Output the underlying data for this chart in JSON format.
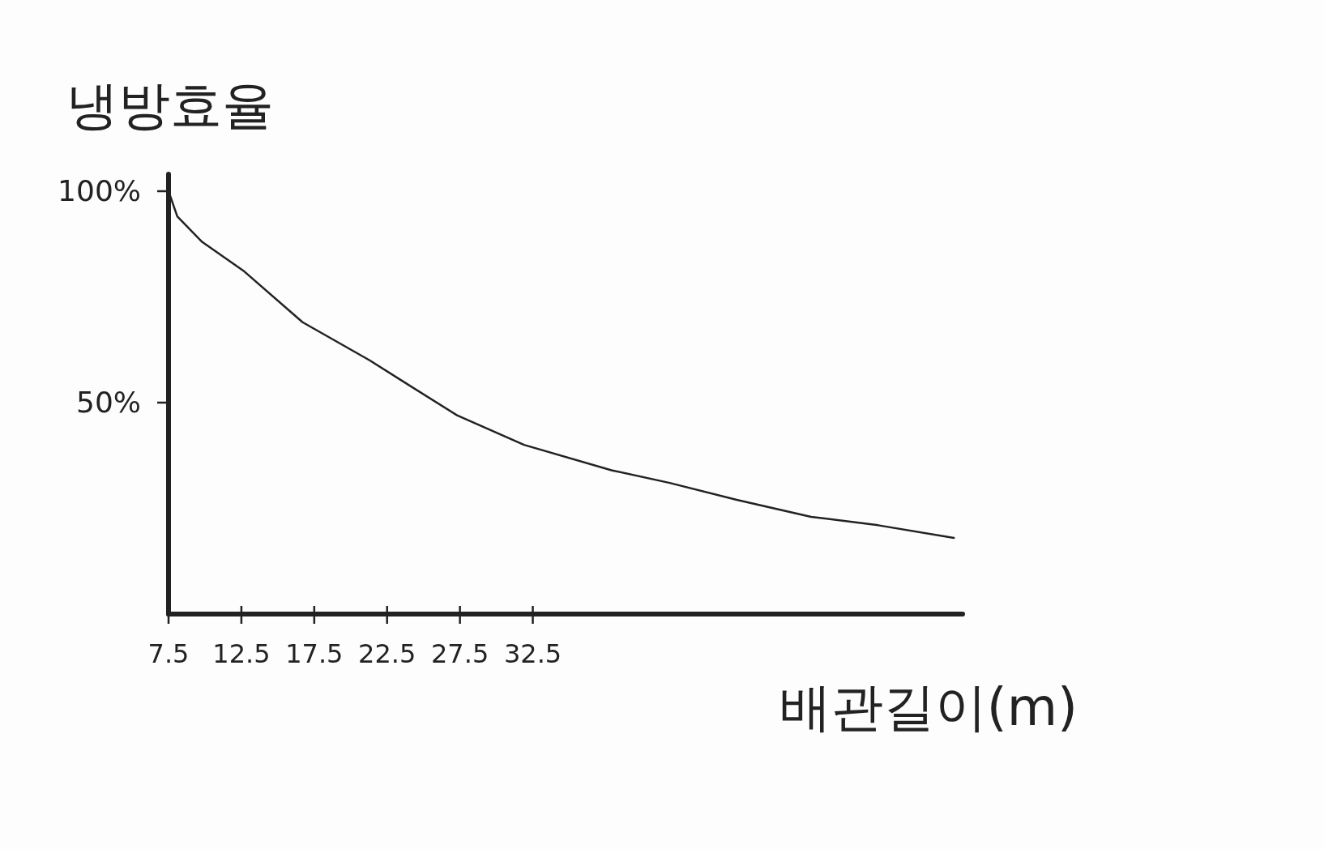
{
  "chart_data": {
    "type": "line",
    "xlabel": "배관길이(m)",
    "ylabel": "냉방효율",
    "xlim": [
      7.5,
      62
    ],
    "ylim": [
      0,
      104
    ],
    "xticks": [
      7.5,
      12.5,
      17.5,
      22.5,
      27.5,
      32.5
    ],
    "yticks": [
      {
        "value": 50,
        "label": "50%"
      },
      {
        "value": 100,
        "label": "100%"
      }
    ],
    "series": [
      {
        "color": "#222222",
        "x": [
          7.6,
          8.1,
          9.8,
          12.7,
          16.7,
          21.3,
          23.6,
          27.3,
          31.9,
          37.9,
          41.9,
          46.5,
          51.6,
          56.2,
          61.4
        ],
        "values": [
          99,
          94,
          88,
          81,
          69,
          60,
          55,
          47,
          40,
          34,
          31,
          27,
          23,
          21,
          18
        ]
      }
    ]
  }
}
